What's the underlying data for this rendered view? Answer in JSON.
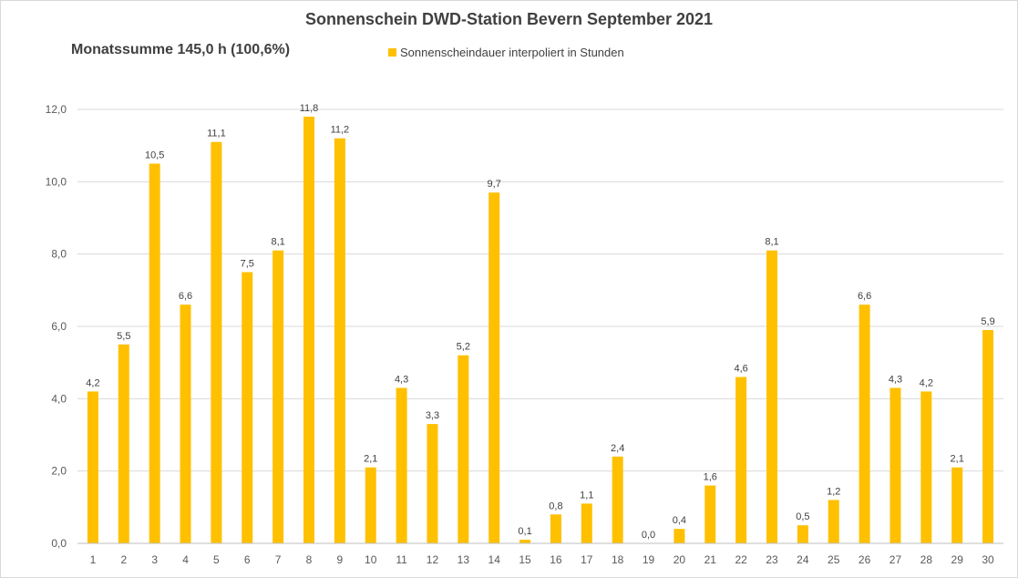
{
  "chart_data": {
    "type": "bar",
    "title": "Sonnenschein  DWD-Station  Bevern September 2021",
    "subtitle": "Monatssumme 145,0 h (100,6%)",
    "legend": {
      "position": "top",
      "entries": [
        "Sonnenscheindauer interpoliert in Stunden"
      ]
    },
    "xlabel": "",
    "ylabel": "",
    "ylim": [
      0,
      12
    ],
    "yticks": [
      "0,0",
      "2,0",
      "4,0",
      "6,0",
      "8,0",
      "10,0",
      "12,0"
    ],
    "grid": true,
    "categories": [
      "1",
      "2",
      "3",
      "4",
      "5",
      "6",
      "7",
      "8",
      "9",
      "10",
      "11",
      "12",
      "13",
      "14",
      "15",
      "16",
      "17",
      "18",
      "19",
      "20",
      "21",
      "22",
      "23",
      "24",
      "25",
      "26",
      "27",
      "28",
      "29",
      "30"
    ],
    "series": [
      {
        "name": "Sonnenscheindauer interpoliert in Stunden",
        "color": "#ffc000",
        "values": [
          4.2,
          5.5,
          10.5,
          6.6,
          11.1,
          7.5,
          8.1,
          11.8,
          11.2,
          2.1,
          4.3,
          3.3,
          5.2,
          9.7,
          0.1,
          0.8,
          1.1,
          2.4,
          0.0,
          0.4,
          1.6,
          4.6,
          8.1,
          0.5,
          1.2,
          6.6,
          4.3,
          4.2,
          2.1,
          5.9
        ],
        "labels": [
          "4,2",
          "5,5",
          "10,5",
          "6,6",
          "11,1",
          "7,5",
          "8,1",
          "11,8",
          "11,2",
          "2,1",
          "4,3",
          "3,3",
          "5,2",
          "9,7",
          "0,1",
          "0,8",
          "1,1",
          "2,4",
          "0,0",
          "0,4",
          "1,6",
          "4,6",
          "8,1",
          "0,5",
          "1,2",
          "6,6",
          "4,3",
          "4,2",
          "2,1",
          "5,9"
        ]
      }
    ]
  },
  "colors": {
    "bar": "#ffc000",
    "grid": "#d9d9d9",
    "axis": "#bfbfbf"
  }
}
